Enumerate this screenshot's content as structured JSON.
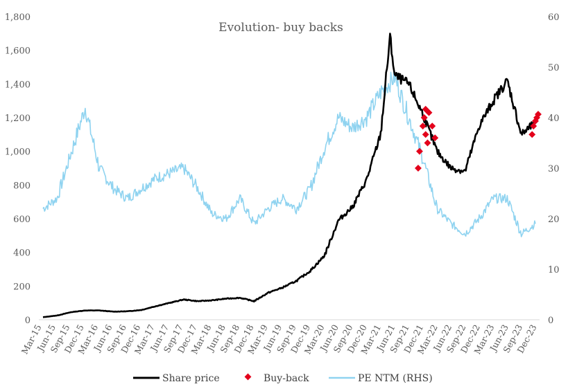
{
  "chart_data": {
    "type": "line",
    "title": "Evolution- buy backs",
    "xlabel": "",
    "ylabel": "",
    "y_left": {
      "ticks": [
        "0",
        "200",
        "400",
        "600",
        "800",
        "1,000",
        "1,200",
        "1,400",
        "1,600",
        "1,800"
      ],
      "lim": [
        0,
        1800
      ]
    },
    "y_right": {
      "ticks": [
        "0",
        "10",
        "20",
        "30",
        "40",
        "50",
        "60"
      ],
      "lim": [
        0,
        60
      ]
    },
    "x_ticks": [
      "Mar-15",
      "Jun-15",
      "Sep-15",
      "Dec-15",
      "Mar-16",
      "Jun-16",
      "Sep-16",
      "Dec-16",
      "Mar-17",
      "Jun-17",
      "Sep-17",
      "Dec-17",
      "Mar-18",
      "Jun-18",
      "Sep-18",
      "Dec-18",
      "Mar-19",
      "Jun-19",
      "Sep-19",
      "Dec-19",
      "Mar-20",
      "Jun-20",
      "Sep-20",
      "Dec-20",
      "Mar-21",
      "Jun-21",
      "Sep-21",
      "Dec-21",
      "Mar-22",
      "Jun-22",
      "Sep-22",
      "Dec-22",
      "Mar-23",
      "Jun-23",
      "Sep-23",
      "Dec-23"
    ],
    "grid": false,
    "legend_position": "bottom",
    "colors": {
      "share_price": "#000000",
      "buy_back": "#e3001b",
      "pe": "#8fd3f0"
    },
    "series": [
      {
        "name": "Share price",
        "axis": "left",
        "x": [
          "2015-03",
          "2015-06",
          "2015-09",
          "2015-12",
          "2016-03",
          "2016-06",
          "2016-09",
          "2016-12",
          "2017-03",
          "2017-06",
          "2017-09",
          "2017-12",
          "2018-03",
          "2018-06",
          "2018-09",
          "2018-12",
          "2019-03",
          "2019-06",
          "2019-09",
          "2019-12",
          "2020-03",
          "2020-06",
          "2020-09",
          "2020-12",
          "2021-03",
          "2021-05",
          "2021-06",
          "2021-09",
          "2021-12",
          "2022-03",
          "2022-06",
          "2022-09",
          "2022-12",
          "2023-03",
          "2023-06",
          "2023-09",
          "2023-12"
        ],
        "values": [
          15,
          25,
          45,
          55,
          55,
          48,
          50,
          58,
          80,
          100,
          120,
          110,
          115,
          125,
          130,
          110,
          160,
          190,
          230,
          290,
          380,
          590,
          670,
          830,
          1100,
          1680,
          1450,
          1400,
          1220,
          1000,
          900,
          880,
          1150,
          1300,
          1420,
          1100,
          1170
        ]
      },
      {
        "name": "Buy-back",
        "axis": "left",
        "x": [
          "2021-11",
          "2021-11",
          "2021-12",
          "2021-12",
          "2021-12",
          "2021-12",
          "2022-01",
          "2022-01",
          "2022-02",
          "2022-02",
          "2023-11",
          "2023-11",
          "2023-12",
          "2023-12",
          "2023-12"
        ],
        "values": [
          900,
          1000,
          1100,
          1150,
          1200,
          1250,
          1050,
          1230,
          1080,
          1150,
          1100,
          1150,
          1180,
          1200,
          1220
        ]
      },
      {
        "name": "PE NTM (RHS)",
        "axis": "right",
        "x": [
          "2015-03",
          "2015-06",
          "2015-09",
          "2015-12",
          "2016-03",
          "2016-06",
          "2016-09",
          "2016-12",
          "2017-03",
          "2017-06",
          "2017-09",
          "2017-12",
          "2018-03",
          "2018-06",
          "2018-09",
          "2018-12",
          "2019-03",
          "2019-06",
          "2019-09",
          "2019-12",
          "2020-03",
          "2020-06",
          "2020-09",
          "2020-12",
          "2021-03",
          "2021-06",
          "2021-09",
          "2021-12",
          "2022-03",
          "2022-06",
          "2022-09",
          "2022-12",
          "2023-03",
          "2023-06",
          "2023-09",
          "2023-12"
        ],
        "values": [
          22,
          24,
          33,
          42,
          30,
          26,
          24,
          26,
          28,
          29,
          30,
          26,
          21,
          20,
          24,
          19,
          22,
          24,
          22,
          26,
          34,
          40,
          38,
          40,
          45,
          48,
          40,
          32,
          22,
          19,
          17,
          20,
          24,
          24,
          17,
          19
        ]
      }
    ]
  }
}
